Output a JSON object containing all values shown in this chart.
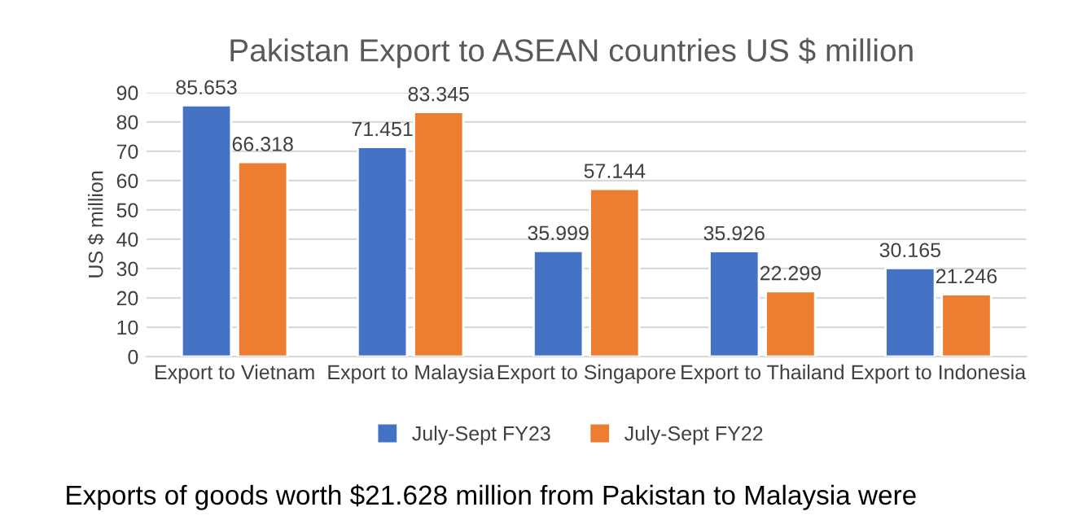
{
  "chart_data": {
    "type": "bar",
    "title": "Pakistan Export to ASEAN countries US $ million",
    "ylabel": "US $ million",
    "categories": [
      "Export to Vietnam",
      "Export to Malaysia",
      "Export to Singapore",
      "Export to Thailand",
      "Export to Indonesia"
    ],
    "series": [
      {
        "name": "July-Sept FY23",
        "color": "#4472c4",
        "values": [
          85.653,
          71.451,
          35.999,
          35.926,
          30.165
        ]
      },
      {
        "name": "July-Sept FY22",
        "color": "#ed7d31",
        "values": [
          66.318,
          83.345,
          57.144,
          22.299,
          21.246
        ]
      }
    ],
    "ylim": [
      0,
      90
    ],
    "yticks": [
      0,
      10,
      20,
      30,
      40,
      50,
      60,
      70,
      80,
      90
    ],
    "grid": "y",
    "legend": "bottom",
    "data_labels": true,
    "annotations": [
      "Exports of goods worth $21.628 million from Pakistan to Malaysia were"
    ]
  }
}
